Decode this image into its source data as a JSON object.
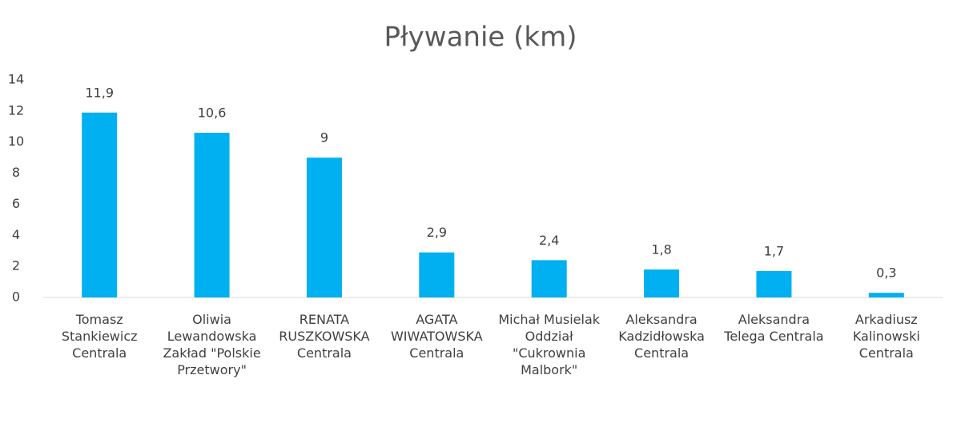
{
  "chart_data": {
    "type": "bar",
    "title": "Pływanie (km)",
    "categories": [
      "Tomasz Stankiewicz Centrala",
      "Oliwia Lewandowska Zakład \"Polskie Przetwory\"",
      "RENATA RUSZKOWSKA Centrala",
      "AGATA WIWATOWSKA Centrala",
      "Michał Musielak Oddział \"Cukrownia Malbork\"",
      "Aleksandra Kadzidłowska Centrala",
      "Aleksandra Telega Centrala",
      "Arkadiusz Kalinowski Centrala"
    ],
    "values": [
      11.9,
      10.6,
      9,
      2.9,
      2.4,
      1.8,
      1.7,
      0.3
    ],
    "value_labels": [
      "11,9",
      "10,6",
      "9",
      "2,9",
      "2,4",
      "1,8",
      "1,7",
      "0,3"
    ],
    "color": "#00b0f0",
    "ylim": [
      0,
      14
    ],
    "yticks": [
      0,
      2,
      4,
      6,
      8,
      10,
      12,
      14
    ],
    "grid": false
  }
}
